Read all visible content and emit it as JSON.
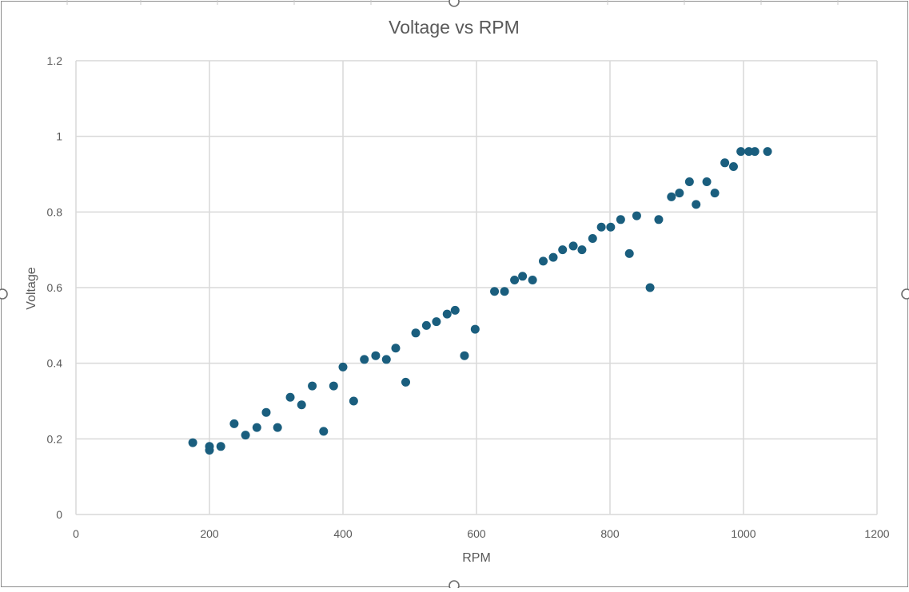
{
  "chart_data": {
    "type": "scatter",
    "title": "Voltage vs RPM",
    "xlabel": "RPM",
    "ylabel": "Voltage",
    "xlim": [
      0,
      1200
    ],
    "ylim": [
      0,
      1.2
    ],
    "xticks": [
      0,
      200,
      400,
      600,
      800,
      1000,
      1200
    ],
    "yticks": [
      0,
      0.2,
      0.4,
      0.6,
      0.8,
      1,
      1.2
    ],
    "xtick_labels": [
      "0",
      "200",
      "400",
      "600",
      "800",
      "1000",
      "1200"
    ],
    "ytick_labels": [
      "0",
      "0.2",
      "0.4",
      "0.6",
      "0.8",
      "1",
      "1.2"
    ],
    "grid": true,
    "legend": "none",
    "marker_color": "#1a5e7e",
    "grid_color": "#d9d9d9",
    "axis_text_color": "#595959",
    "points": [
      [
        175,
        0.19
      ],
      [
        200,
        0.18
      ],
      [
        200,
        0.17
      ],
      [
        217,
        0.18
      ],
      [
        237,
        0.24
      ],
      [
        254,
        0.21
      ],
      [
        271,
        0.23
      ],
      [
        285,
        0.27
      ],
      [
        302,
        0.23
      ],
      [
        321,
        0.31
      ],
      [
        338,
        0.29
      ],
      [
        354,
        0.34
      ],
      [
        371,
        0.22
      ],
      [
        386,
        0.34
      ],
      [
        400,
        0.39
      ],
      [
        416,
        0.3
      ],
      [
        432,
        0.41
      ],
      [
        449,
        0.42
      ],
      [
        465,
        0.41
      ],
      [
        479,
        0.44
      ],
      [
        494,
        0.35
      ],
      [
        509,
        0.48
      ],
      [
        525,
        0.5
      ],
      [
        540,
        0.51
      ],
      [
        556,
        0.53
      ],
      [
        568,
        0.54
      ],
      [
        582,
        0.42
      ],
      [
        598,
        0.49
      ],
      [
        627,
        0.59
      ],
      [
        642,
        0.59
      ],
      [
        657,
        0.62
      ],
      [
        669,
        0.63
      ],
      [
        684,
        0.62
      ],
      [
        700,
        0.67
      ],
      [
        715,
        0.68
      ],
      [
        729,
        0.7
      ],
      [
        745,
        0.71
      ],
      [
        758,
        0.7
      ],
      [
        774,
        0.73
      ],
      [
        787,
        0.76
      ],
      [
        801,
        0.76
      ],
      [
        816,
        0.78
      ],
      [
        829,
        0.69
      ],
      [
        840,
        0.79
      ],
      [
        860,
        0.6
      ],
      [
        873,
        0.78
      ],
      [
        892,
        0.84
      ],
      [
        904,
        0.85
      ],
      [
        919,
        0.88
      ],
      [
        929,
        0.82
      ],
      [
        945,
        0.88
      ],
      [
        957,
        0.85
      ],
      [
        972,
        0.93
      ],
      [
        985,
        0.92
      ],
      [
        996,
        0.96
      ],
      [
        1008,
        0.96
      ],
      [
        1017,
        0.96
      ],
      [
        1036,
        0.96
      ]
    ]
  }
}
